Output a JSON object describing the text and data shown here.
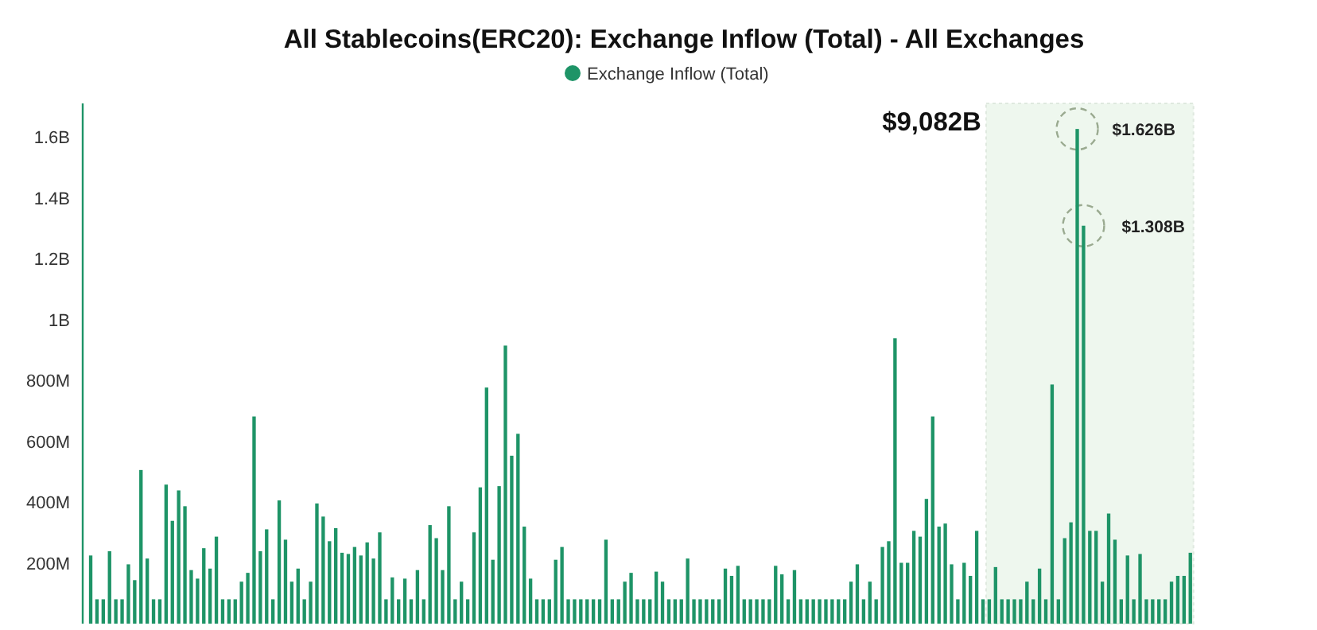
{
  "chart_data": {
    "type": "bar",
    "title": "All Stablecoins(ERC20): Exchange Inflow (Total) - All Exchanges",
    "categories": [
      null,
      null,
      null,
      null,
      null,
      null,
      null,
      null,
      null,
      null,
      null,
      null,
      null,
      null,
      null,
      null,
      null,
      null,
      null,
      null,
      null,
      null,
      null,
      null,
      null,
      null,
      null,
      null,
      null,
      null,
      null,
      null,
      null,
      null,
      null,
      null,
      null,
      null,
      null,
      null,
      null,
      null,
      null,
      null,
      null,
      null,
      null,
      null,
      null,
      null,
      null,
      null,
      null,
      null,
      null,
      null,
      null,
      null,
      null,
      null,
      null,
      null,
      null,
      null,
      null,
      null,
      null,
      null,
      null,
      null,
      null,
      null,
      null,
      null,
      null,
      null,
      null,
      null,
      null,
      null,
      null,
      null,
      null,
      null,
      null,
      null,
      null,
      null,
      null,
      null,
      null,
      null,
      null,
      null,
      null,
      null,
      null,
      null,
      null,
      null,
      null,
      null,
      null,
      null,
      null,
      null,
      null,
      null,
      null,
      null,
      null,
      null,
      null,
      null,
      null,
      null,
      null,
      null,
      null,
      null,
      null,
      null,
      null,
      null,
      null,
      null,
      null,
      null,
      null,
      null,
      null,
      null,
      null,
      null,
      null,
      null,
      null,
      null,
      null,
      null,
      null,
      null,
      null,
      null,
      null,
      null,
      null,
      null,
      null,
      null,
      null,
      null,
      null,
      null,
      null,
      null,
      null,
      null,
      null,
      null,
      null,
      null,
      null,
      null,
      null,
      null,
      null,
      null,
      null,
      null,
      null,
      null,
      null,
      null,
      null,
      null
    ],
    "series": [
      {
        "name": "Exchange Inflow (Total)",
        "color": "#1e9467",
        "values": [
          224000000,
          80000000,
          80000000,
          238000000,
          80000000,
          80000000,
          195000000,
          143000000,
          505000000,
          214000000,
          80000000,
          80000000,
          457000000,
          338000000,
          438000000,
          386000000,
          176000000,
          148000000,
          248000000,
          181000000,
          286000000,
          80000000,
          80000000,
          80000000,
          138000000,
          167000000,
          681000000,
          238000000,
          310000000,
          80000000,
          405000000,
          276000000,
          138000000,
          181000000,
          80000000,
          138000000,
          395000000,
          352000000,
          271000000,
          314000000,
          233000000,
          229000000,
          252000000,
          224000000,
          267000000,
          214000000,
          300000000,
          80000000,
          152000000,
          80000000,
          148000000,
          80000000,
          176000000,
          80000000,
          324000000,
          281000000,
          176000000,
          386000000,
          80000000,
          138000000,
          80000000,
          300000000,
          448000000,
          776000000,
          210000000,
          452000000,
          914000000,
          552000000,
          624000000,
          319000000,
          148000000,
          80000000,
          80000000,
          80000000,
          210000000,
          252000000,
          80000000,
          80000000,
          80000000,
          80000000,
          80000000,
          80000000,
          276000000,
          80000000,
          80000000,
          138000000,
          167000000,
          80000000,
          80000000,
          80000000,
          171000000,
          138000000,
          80000000,
          80000000,
          80000000,
          214000000,
          80000000,
          80000000,
          80000000,
          80000000,
          80000000,
          181000000,
          157000000,
          190000000,
          80000000,
          80000000,
          80000000,
          80000000,
          80000000,
          190000000,
          162000000,
          80000000,
          176000000,
          80000000,
          80000000,
          80000000,
          80000000,
          80000000,
          80000000,
          80000000,
          80000000,
          138000000,
          195000000,
          80000000,
          138000000,
          80000000,
          252000000,
          271000000,
          938000000,
          200000000,
          200000000,
          305000000,
          286000000,
          410000000,
          681000000,
          319000000,
          329000000,
          195000000,
          80000000,
          200000000,
          157000000,
          305000000,
          80000000,
          80000000,
          186000000,
          80000000,
          80000000,
          80000000,
          80000000,
          138000000,
          80000000,
          181000000,
          80000000,
          786000000,
          80000000,
          281000000,
          333000000,
          1626000000,
          1308000000,
          305000000,
          305000000,
          138000000,
          362000000,
          276000000,
          80000000,
          224000000,
          80000000,
          229000000,
          80000000,
          80000000,
          80000000,
          80000000,
          138000000,
          157000000,
          157000000,
          233000000
        ]
      }
    ],
    "ylim": [
      0,
      1710000000
    ],
    "yticks": [
      {
        "value": 200000000,
        "label": "200M"
      },
      {
        "value": 400000000,
        "label": "400M"
      },
      {
        "value": 600000000,
        "label": "600M"
      },
      {
        "value": 800000000,
        "label": "800M"
      },
      {
        "value": 1000000000,
        "label": "1B"
      },
      {
        "value": 1200000000,
        "label": "1.2B"
      },
      {
        "value": 1400000000,
        "label": "1.4B"
      },
      {
        "value": 1600000000,
        "label": "1.6B"
      }
    ],
    "tick_labels": "y",
    "grid": false,
    "legend": "top",
    "annotations": [
      "$9,082B",
      "$1.626B",
      "$1.308B"
    ]
  }
}
